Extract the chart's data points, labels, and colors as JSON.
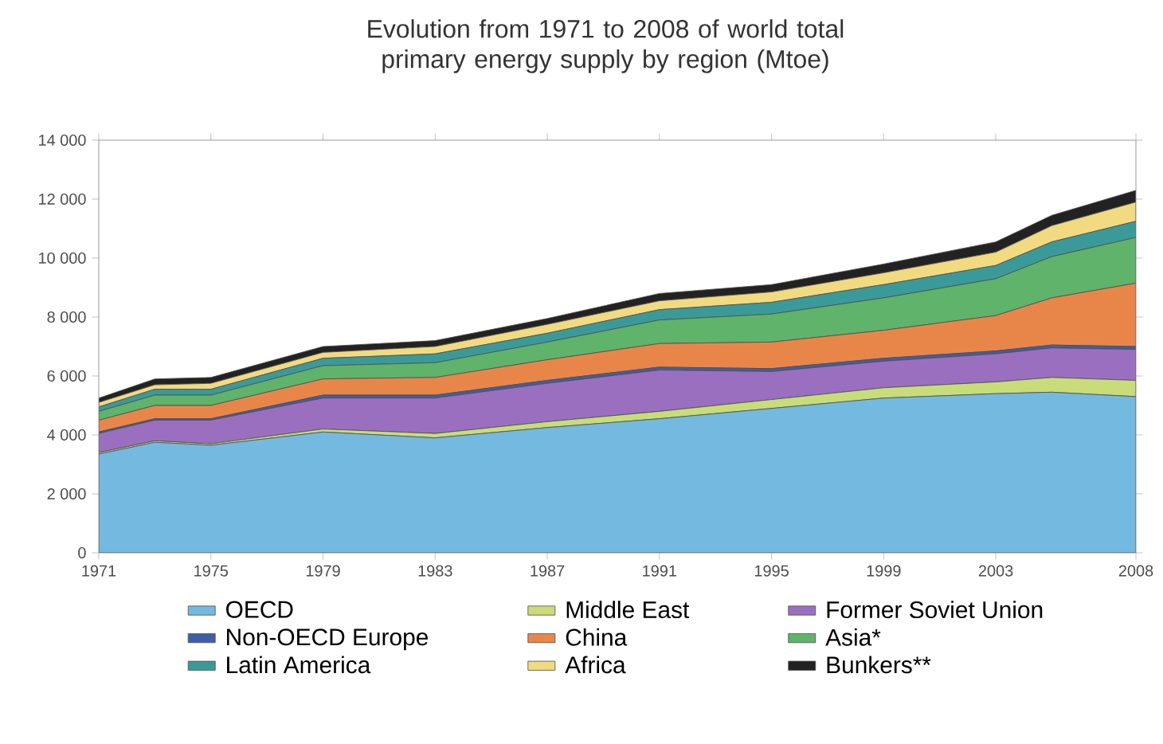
{
  "chart_data": {
    "type": "area",
    "stacked": true,
    "title": "Evolution from 1971 to 2008 of world total primary energy supply by region (Mtoe)",
    "x": [
      1971,
      1973,
      1975,
      1979,
      1983,
      1987,
      1991,
      1995,
      1999,
      2003,
      2005,
      2008
    ],
    "series": [
      {
        "name": "OECD",
        "color": "#74b9e0",
        "values": [
          3350,
          3750,
          3650,
          4100,
          3900,
          4250,
          4550,
          4900,
          5250,
          5400,
          5450,
          5300
        ]
      },
      {
        "name": "Middle East",
        "color": "#c8dc7a",
        "values": [
          50,
          50,
          50,
          100,
          150,
          200,
          250,
          300,
          350,
          400,
          500,
          550
        ]
      },
      {
        "name": "Former Soviet Union",
        "color": "#9b6fc0",
        "values": [
          650,
          700,
          800,
          1050,
          1200,
          1300,
          1400,
          950,
          900,
          950,
          1000,
          1050
        ]
      },
      {
        "name": "Non-OECD Europe",
        "color": "#3e5ea8",
        "values": [
          50,
          50,
          50,
          100,
          100,
          100,
          100,
          100,
          100,
          100,
          100,
          100
        ]
      },
      {
        "name": "China",
        "color": "#e8864a",
        "values": [
          400,
          450,
          450,
          550,
          600,
          700,
          800,
          900,
          950,
          1200,
          1600,
          2150
        ]
      },
      {
        "name": "Asia*",
        "color": "#5fb36b",
        "values": [
          300,
          350,
          350,
          450,
          500,
          600,
          800,
          950,
          1100,
          1250,
          1400,
          1550
        ]
      },
      {
        "name": "Latin America",
        "color": "#3a9a9a",
        "values": [
          150,
          200,
          200,
          250,
          300,
          300,
          350,
          400,
          450,
          450,
          500,
          550
        ]
      },
      {
        "name": "Africa",
        "color": "#f2da80",
        "values": [
          150,
          150,
          200,
          200,
          250,
          300,
          300,
          350,
          400,
          450,
          550,
          650
        ]
      },
      {
        "name": "Bunkers**",
        "color": "#222222",
        "values": [
          150,
          200,
          200,
          200,
          200,
          200,
          250,
          250,
          300,
          350,
          350,
          400
        ]
      }
    ],
    "xlim": [
      1971,
      2008
    ],
    "xticks": [
      1971,
      1975,
      1979,
      1983,
      1987,
      1991,
      1995,
      1999,
      2003,
      2008
    ],
    "ylim": [
      0,
      14000
    ],
    "yticks": [
      0,
      {
        "value": 2000,
        "label": "2 000"
      },
      {
        "value": 4000,
        "label": "4 000"
      },
      {
        "value": 6000,
        "label": "6 000"
      },
      {
        "value": 8000,
        "label": "8 000"
      },
      {
        "value": 10000,
        "label": "10 000"
      },
      {
        "value": 12000,
        "label": "12 000"
      },
      {
        "value": 14000,
        "label": "14 000"
      }
    ],
    "legend": "bottom"
  }
}
